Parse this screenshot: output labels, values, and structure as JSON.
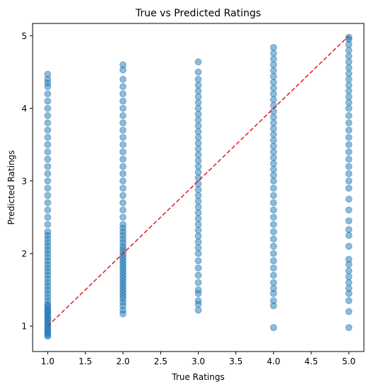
{
  "chart_data": {
    "type": "scatter",
    "title": "True vs Predicted Ratings",
    "xlabel": "True Ratings",
    "ylabel": "Predicted Ratings",
    "xlim": [
      0.8,
      5.2
    ],
    "ylim": [
      0.65,
      5.17
    ],
    "x_ticks": [
      "1.0",
      "1.5",
      "2.0",
      "2.5",
      "3.0",
      "3.5",
      "4.0",
      "4.5",
      "5.0"
    ],
    "x_tick_values": [
      1.0,
      1.5,
      2.0,
      2.5,
      3.0,
      3.5,
      4.0,
      4.5,
      5.0
    ],
    "y_ticks": [
      "1",
      "2",
      "3",
      "4",
      "5"
    ],
    "y_tick_values": [
      1,
      2,
      3,
      4,
      5
    ],
    "grid": false,
    "point_color": "#1f77b4",
    "point_alpha": 0.5,
    "series": [
      {
        "x": 1.0,
        "y": [
          0.86,
          0.88,
          0.9,
          0.92,
          0.95,
          0.97,
          1.0,
          1.02,
          1.05,
          1.08,
          1.1,
          1.12,
          1.15,
          1.18,
          1.2,
          1.22,
          1.25,
          1.28,
          1.3,
          1.35,
          1.4,
          1.45,
          1.5,
          1.55,
          1.6,
          1.65,
          1.7,
          1.75,
          1.8,
          1.85,
          1.9,
          1.95,
          2.0,
          2.05,
          2.1,
          2.15,
          2.2,
          2.25,
          2.3,
          2.4,
          2.5,
          2.6,
          2.7,
          2.8,
          2.9,
          3.0,
          3.1,
          3.2,
          3.3,
          3.4,
          3.5,
          3.6,
          3.7,
          3.8,
          3.9,
          4.0,
          4.1,
          4.2,
          4.3,
          4.35,
          4.4,
          4.47
        ]
      },
      {
        "x": 2.0,
        "y": [
          1.17,
          1.22,
          1.28,
          1.33,
          1.38,
          1.42,
          1.46,
          1.5,
          1.54,
          1.58,
          1.62,
          1.66,
          1.7,
          1.74,
          1.78,
          1.82,
          1.86,
          1.9,
          1.94,
          1.98,
          2.02,
          2.06,
          2.1,
          2.15,
          2.2,
          2.25,
          2.3,
          2.35,
          2.4,
          2.5,
          2.6,
          2.7,
          2.8,
          2.9,
          3.0,
          3.1,
          3.2,
          3.3,
          3.4,
          3.5,
          3.6,
          3.7,
          3.8,
          3.9,
          4.0,
          4.1,
          4.2,
          4.3,
          4.4,
          4.53,
          4.6
        ]
      },
      {
        "x": 3.0,
        "y": [
          1.22,
          1.3,
          1.35,
          1.45,
          1.5,
          1.6,
          1.7,
          1.8,
          1.9,
          2.0,
          2.08,
          2.16,
          2.24,
          2.32,
          2.4,
          2.48,
          2.56,
          2.64,
          2.72,
          2.8,
          2.88,
          2.96,
          3.04,
          3.12,
          3.2,
          3.28,
          3.36,
          3.44,
          3.52,
          3.6,
          3.68,
          3.76,
          3.84,
          3.92,
          4.0,
          4.08,
          4.16,
          4.24,
          4.32,
          4.4,
          4.5,
          4.64
        ]
      },
      {
        "x": 4.0,
        "y": [
          0.98,
          1.28,
          1.35,
          1.45,
          1.52,
          1.6,
          1.7,
          1.8,
          1.9,
          2.0,
          2.1,
          2.2,
          2.3,
          2.4,
          2.5,
          2.6,
          2.7,
          2.8,
          2.9,
          3.0,
          3.08,
          3.16,
          3.24,
          3.32,
          3.4,
          3.48,
          3.56,
          3.64,
          3.72,
          3.8,
          3.88,
          3.96,
          4.04,
          4.12,
          4.2,
          4.28,
          4.36,
          4.44,
          4.52,
          4.6,
          4.68,
          4.76,
          4.84
        ]
      },
      {
        "x": 5.0,
        "y": [
          0.98,
          1.2,
          1.35,
          1.45,
          1.52,
          1.6,
          1.68,
          1.76,
          1.85,
          1.92,
          2.1,
          2.25,
          2.33,
          2.45,
          2.6,
          2.75,
          2.9,
          3.0,
          3.1,
          3.2,
          3.3,
          3.4,
          3.5,
          3.6,
          3.7,
          3.8,
          3.9,
          4.0,
          4.08,
          4.16,
          4.24,
          4.32,
          4.4,
          4.48,
          4.56,
          4.64,
          4.72,
          4.8,
          4.88,
          4.95,
          4.98
        ]
      }
    ],
    "reference_line": {
      "from": [
        1.0,
        1.0
      ],
      "to": [
        5.0,
        5.0
      ],
      "color": "#e31a1c",
      "style": "dashed"
    }
  }
}
